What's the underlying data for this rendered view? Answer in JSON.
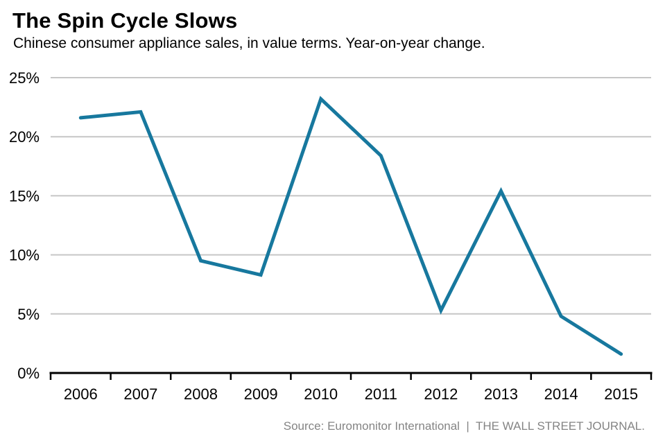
{
  "header": {
    "title": "The Spin Cycle Slows",
    "subtitle": "Chinese consumer appliance sales, in value terms. Year-on-year change."
  },
  "chart_data": {
    "type": "line",
    "title": "The Spin Cycle Slows",
    "subtitle": "Chinese consumer appliance sales, in value terms. Year-on-year change.",
    "categories": [
      "2006",
      "2007",
      "2008",
      "2009",
      "2010",
      "2011",
      "2012",
      "2013",
      "2014",
      "2015"
    ],
    "values": [
      21.6,
      22.1,
      9.5,
      8.3,
      23.2,
      18.4,
      5.3,
      15.4,
      4.8,
      1.6
    ],
    "series_name": "Year-on-year change",
    "xlabel": "",
    "ylabel": "",
    "ylim": [
      0,
      25
    ],
    "yticks": [
      0,
      5,
      10,
      15,
      20,
      25
    ],
    "ytick_suffix": "%",
    "grid": true,
    "legend": false,
    "line_color": "#17789E",
    "grid_color": "#c6c6c6",
    "axis_color": "#000000"
  },
  "footer": {
    "source": "Source: Euromonitor International  |  THE WALL STREET JOURNAL."
  }
}
